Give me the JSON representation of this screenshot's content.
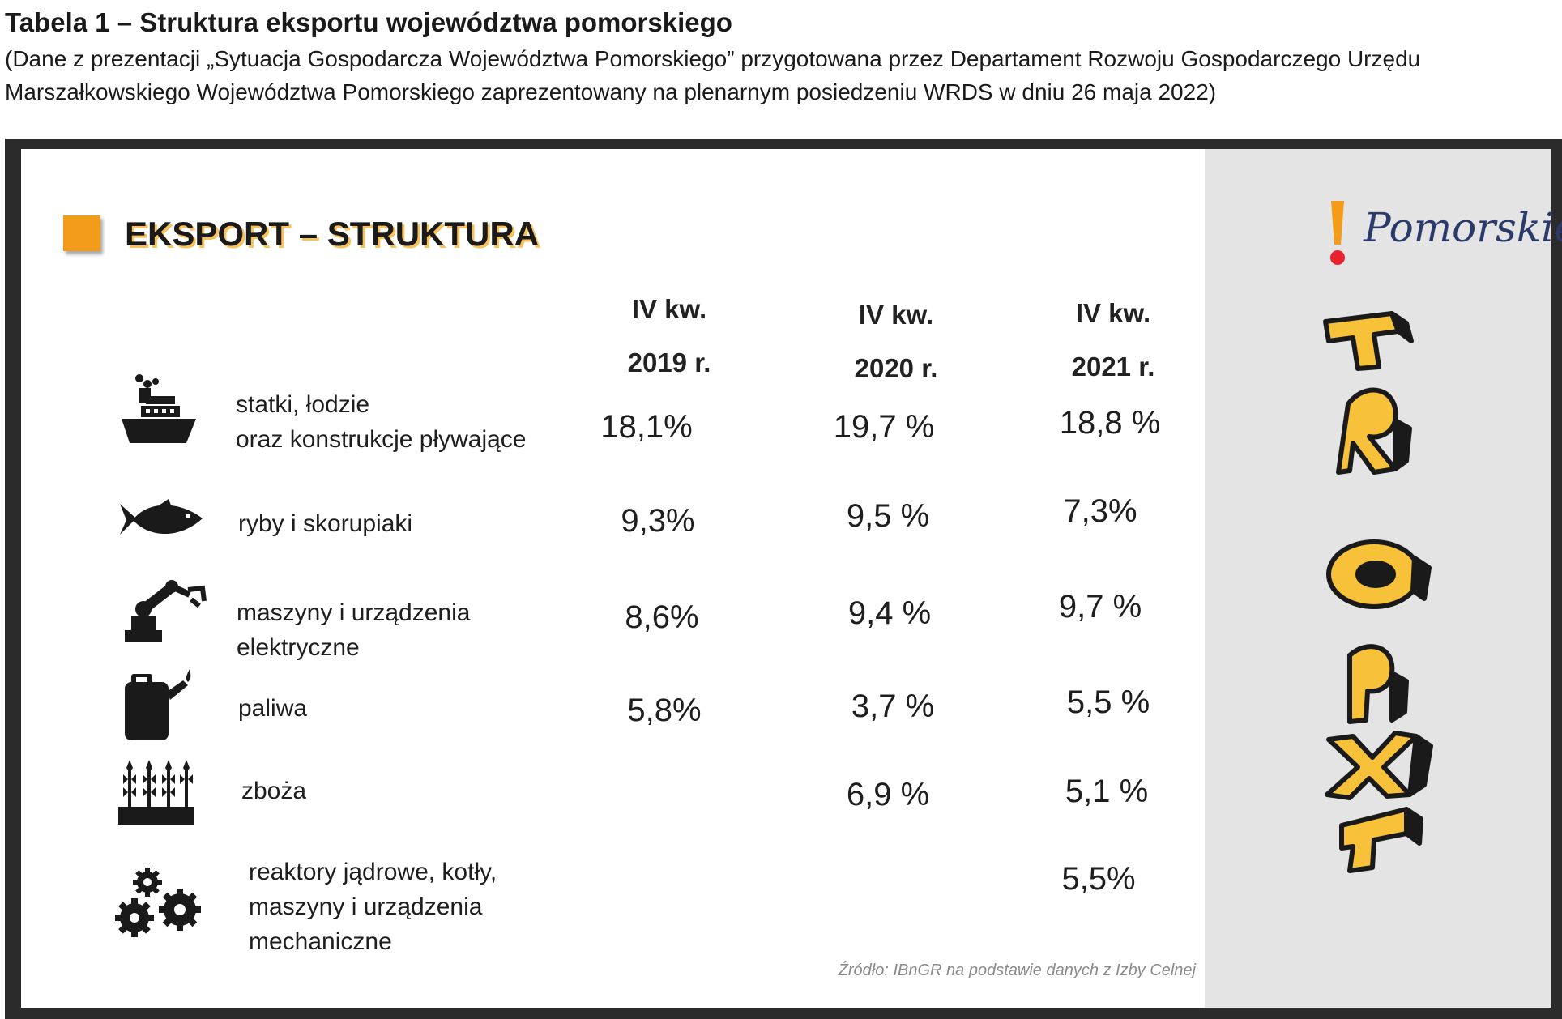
{
  "caption": {
    "title": "Tabela 1 – Struktura eksportu województwa pomorskiego",
    "line1": "(Dane z prezentacji „Sytuacja Gospodarcza Województwa Pomorskiego” przygotowana przez Departament Rozwoju Gospodarczego Urzędu",
    "line2": "Marszałkowskiego Województwa Pomorskiego zaprezentowany na plenarnym posiedzeniu WRDS w dniu 26 maja 2022)"
  },
  "slide": {
    "heading": "EKSPORT – STRUKTURA",
    "accent_color": "#f39b1a",
    "columns": [
      {
        "line1": "IV kw.",
        "line2": "2019 r."
      },
      {
        "line1": "IV kw.",
        "line2": "2020 r."
      },
      {
        "line1": "IV kw.",
        "line2": "2021 r."
      }
    ],
    "rows": [
      {
        "icon": "ship-icon",
        "label1": "statki, łodzie",
        "label2": "oraz konstrukcje pływające",
        "label3": "",
        "v2019": "18,1%",
        "v2020": "19,7 %",
        "v2021": "18,8 %"
      },
      {
        "icon": "fish-icon",
        "label1": "ryby i skorupiaki",
        "label2": "",
        "label3": "",
        "v2019": "9,3%",
        "v2020": "9,5 %",
        "v2021": "7,3%"
      },
      {
        "icon": "robot-arm-icon",
        "label1": "maszyny i urządzenia",
        "label2": "elektryczne",
        "label3": "",
        "v2019": "8,6%",
        "v2020": "9,4 %",
        "v2021": "9,7 %"
      },
      {
        "icon": "fuel-canister-icon",
        "label1": "paliwa",
        "label2": "",
        "label3": "",
        "v2019": "5,8%",
        "v2020": "3,7 %",
        "v2021": "5,5 %"
      },
      {
        "icon": "wheat-icon",
        "label1": "zboża",
        "label2": "",
        "label3": "",
        "v2019": "",
        "v2020": "6,9 %",
        "v2021": "5,1 %"
      },
      {
        "icon": "gears-icon",
        "label1": "reaktory jądrowe, kotły,",
        "label2": "maszyny i urządzenia",
        "label3": "mechaniczne",
        "v2019": "",
        "v2020": "",
        "v2021": "5,5%"
      }
    ],
    "source": "Źródło:  IBnGR na podstawie danych z Izby Celnej",
    "logo": {
      "text": "Pomorskie",
      "accent": "#e8232f",
      "mark": "#f39b1a"
    }
  }
}
